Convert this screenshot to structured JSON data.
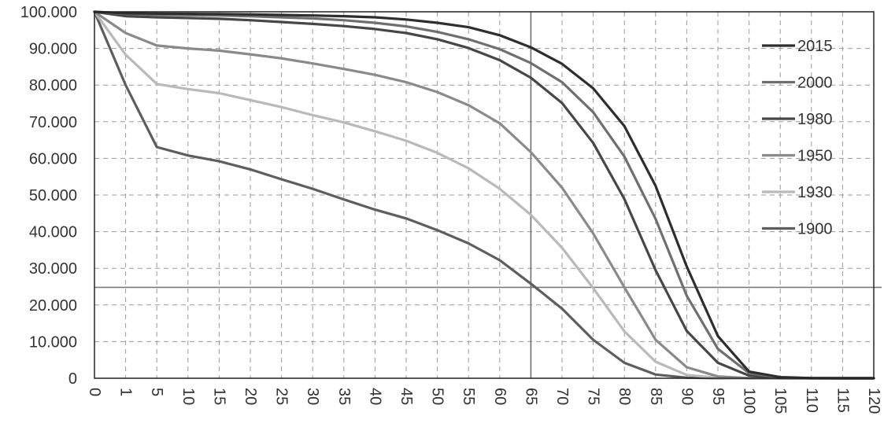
{
  "chart_data": {
    "type": "line",
    "title": "",
    "xlabel": "",
    "ylabel": "",
    "x": [
      0,
      1,
      5,
      10,
      15,
      20,
      25,
      30,
      35,
      40,
      45,
      50,
      55,
      60,
      65,
      70,
      75,
      80,
      85,
      90,
      95,
      100,
      105,
      110,
      115,
      120
    ],
    "x_tick_labels": [
      "0",
      "1",
      "5",
      "10",
      "15",
      "20",
      "25",
      "30",
      "35",
      "40",
      "45",
      "50",
      "55",
      "60",
      "65",
      "70",
      "75",
      "80",
      "85",
      "90",
      "95",
      "100",
      "105",
      "110",
      "115",
      "120"
    ],
    "y_tick_labels": [
      "0",
      "10.000",
      "20.000",
      "30.000",
      "40.000",
      "50.000",
      "60.000",
      "70.000",
      "80.000",
      "90.000",
      "100.000"
    ],
    "ylim": [
      0,
      100000
    ],
    "grid": true,
    "legend_position": "right",
    "series": [
      {
        "name": "2015",
        "color": "#2e2e2e",
        "values": [
          100000,
          99600,
          99500,
          99450,
          99400,
          99300,
          99150,
          99000,
          98800,
          98500,
          97900,
          97000,
          95800,
          93600,
          90300,
          85800,
          79100,
          68800,
          52500,
          30500,
          11500,
          1800,
          300,
          50,
          10,
          0
        ]
      },
      {
        "name": "2000",
        "color": "#6f6f6f",
        "values": [
          100000,
          99400,
          99200,
          99100,
          99000,
          98800,
          98500,
          98200,
          97700,
          97000,
          96000,
          94500,
          92500,
          89800,
          86000,
          80800,
          72600,
          60500,
          43500,
          22500,
          8000,
          1400,
          200,
          30,
          5,
          0
        ]
      },
      {
        "name": "1980",
        "color": "#474747",
        "values": [
          100000,
          98800,
          98500,
          98300,
          98100,
          97700,
          97200,
          96700,
          96100,
          95300,
          94200,
          92500,
          90100,
          86800,
          82000,
          75100,
          64200,
          48900,
          29500,
          12900,
          4200,
          700,
          100,
          10,
          0,
          0
        ]
      },
      {
        "name": "1950",
        "color": "#8a8a8a",
        "values": [
          100000,
          94200,
          90800,
          90000,
          89400,
          88400,
          87300,
          85900,
          84400,
          82800,
          80800,
          78100,
          74500,
          69600,
          61700,
          52000,
          39500,
          24800,
          10500,
          3000,
          500,
          50,
          5,
          0,
          0,
          0
        ]
      },
      {
        "name": "1930",
        "color": "#b9b9b9",
        "values": [
          100000,
          88300,
          80300,
          78900,
          77800,
          75900,
          74000,
          71800,
          69800,
          67400,
          64800,
          61500,
          57300,
          51700,
          44600,
          35600,
          24600,
          12800,
          4500,
          900,
          100,
          10,
          0,
          0,
          0,
          0
        ]
      },
      {
        "name": "1900",
        "color": "#5e5e5e",
        "values": [
          100000,
          80000,
          63100,
          60800,
          59200,
          57000,
          54300,
          51700,
          48800,
          46000,
          43600,
          40400,
          36800,
          32200,
          25800,
          19000,
          10500,
          4200,
          1000,
          150,
          20,
          0,
          0,
          0,
          0,
          0
        ]
      }
    ],
    "reference_lines": [
      {
        "orientation": "vertical",
        "x": 65,
        "color": "#6f6f6f"
      },
      {
        "orientation": "horizontal",
        "y": 24800,
        "color": "#7a7a7a"
      }
    ]
  }
}
